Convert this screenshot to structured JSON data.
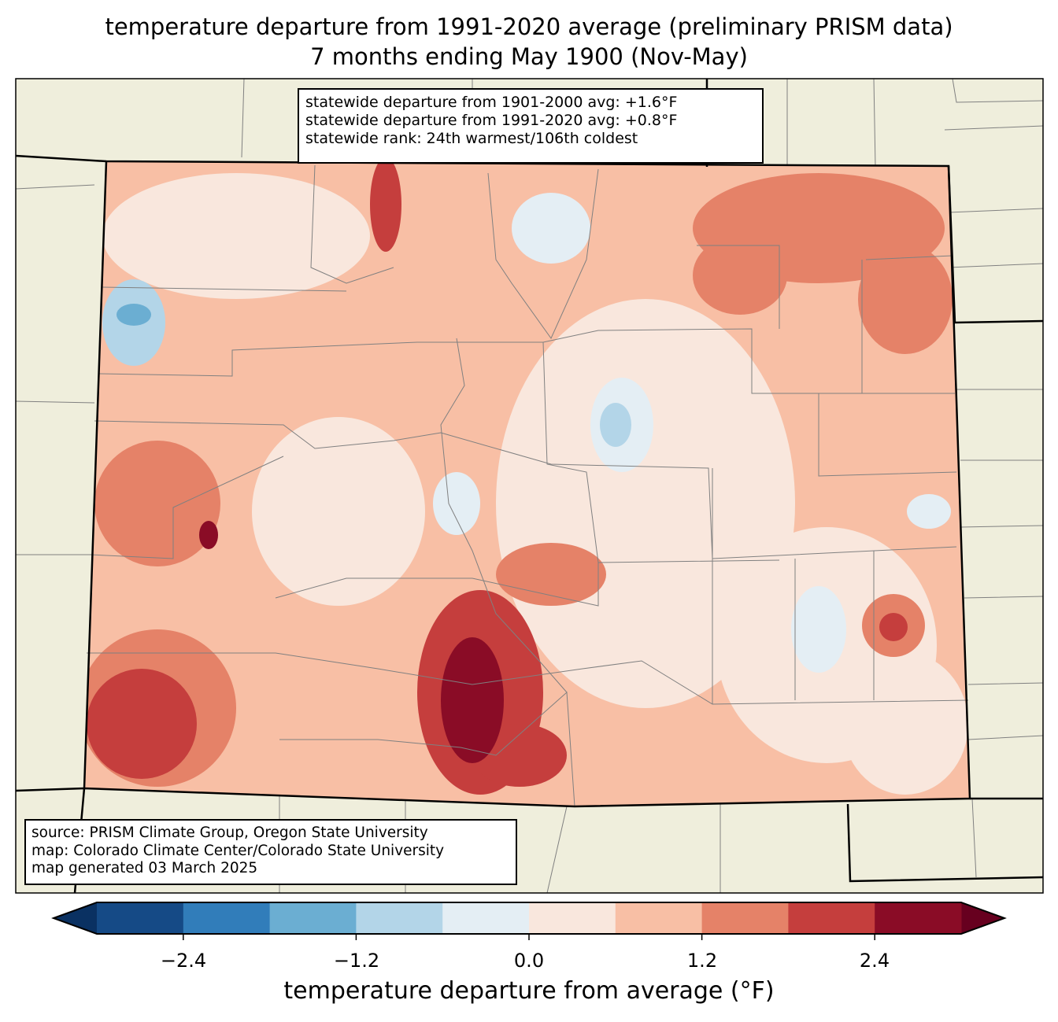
{
  "title": {
    "line1": "temperature departure from 1991-2020 average (preliminary PRISM data)",
    "line2": "7 months ending May 1900 (Nov-May)"
  },
  "stats": {
    "line1": "statewide departure from 1901-2000 avg: +1.6°F",
    "line2": "statewide departure from 1991-2020 avg: +0.8°F",
    "line3": "statewide rank: 24th warmest/106th coldest"
  },
  "credits": {
    "line1": "source: PRISM Climate Group, Oregon State University",
    "line2": "map: Colorado Climate Center/Colorado State University",
    "line3": "map generated 03 March 2025"
  },
  "colorbar": {
    "label": "temperature departure from average (°F)",
    "levels": [
      -3.0,
      -2.4,
      -1.8,
      -1.2,
      -0.6,
      0.0,
      0.6,
      1.2,
      1.8,
      2.4,
      3.0
    ],
    "colors": [
      "#154a86",
      "#317dba",
      "#6baed2",
      "#b3d5e8",
      "#e4eef4",
      "#f9e7dd",
      "#f8bfa5",
      "#e58268",
      "#c53e3d",
      "#8a0c26"
    ],
    "under_color": "#0a3162",
    "over_color": "#67001f",
    "ticks": [
      "−2.4",
      "−1.2",
      "0.0",
      "1.2",
      "2.4"
    ]
  },
  "map_colors": {
    "land": "#efeedc",
    "border": "#000000",
    "county": "#808080"
  }
}
